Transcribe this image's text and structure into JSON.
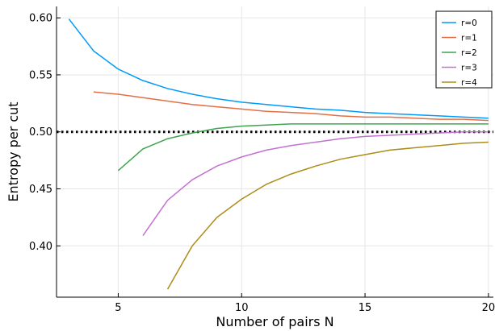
{
  "chart_data": {
    "type": "line",
    "xlabel": "Number of pairs N",
    "ylabel": "Entropy per cut",
    "xlim": [
      2.5,
      20.2
    ],
    "ylim": [
      0.355,
      0.61
    ],
    "x_ticks": [
      5,
      10,
      15,
      20
    ],
    "x_tick_labels": [
      "5",
      "10",
      "15",
      "20"
    ],
    "y_ticks": [
      0.4,
      0.45,
      0.5,
      0.55,
      0.6
    ],
    "y_tick_labels": [
      "0.40",
      "0.45",
      "0.50",
      "0.55",
      "0.60"
    ],
    "grid": true,
    "legend_position": "top-right",
    "reference_line": {
      "y": 0.5,
      "style": "dotted",
      "color": "#000000"
    },
    "series": [
      {
        "name": "r=0",
        "color": "#009AFA",
        "x": [
          3,
          4,
          5,
          6,
          7,
          8,
          9,
          10,
          11,
          12,
          13,
          14,
          15,
          16,
          17,
          18,
          19,
          20
        ],
        "y": [
          0.599,
          0.571,
          0.555,
          0.545,
          0.538,
          0.533,
          0.529,
          0.526,
          0.524,
          0.522,
          0.52,
          0.519,
          0.517,
          0.516,
          0.515,
          0.514,
          0.513,
          0.512
        ]
      },
      {
        "name": "r=1",
        "color": "#E36F47",
        "x": [
          4,
          5,
          6,
          7,
          8,
          9,
          10,
          11,
          12,
          13,
          14,
          15,
          16,
          17,
          18,
          19,
          20
        ],
        "y": [
          0.535,
          0.533,
          0.53,
          0.527,
          0.524,
          0.522,
          0.52,
          0.518,
          0.517,
          0.516,
          0.514,
          0.513,
          0.513,
          0.512,
          0.511,
          0.511,
          0.51
        ]
      },
      {
        "name": "r=2",
        "color": "#3EA44E",
        "x": [
          5,
          6,
          7,
          8,
          9,
          10,
          11,
          12,
          13,
          14,
          15,
          16,
          17,
          18,
          19,
          20
        ],
        "y": [
          0.466,
          0.485,
          0.494,
          0.499,
          0.503,
          0.505,
          0.506,
          0.507,
          0.507,
          0.507,
          0.507,
          0.507,
          0.507,
          0.507,
          0.507,
          0.507
        ]
      },
      {
        "name": "r=3",
        "color": "#C371D2",
        "x": [
          6,
          7,
          8,
          9,
          10,
          11,
          12,
          13,
          14,
          15,
          16,
          17,
          18,
          19,
          20
        ],
        "y": [
          0.409,
          0.44,
          0.458,
          0.47,
          0.478,
          0.484,
          0.488,
          0.491,
          0.494,
          0.496,
          0.497,
          0.498,
          0.499,
          0.5,
          0.5
        ]
      },
      {
        "name": "r=4",
        "color": "#AC8D18",
        "x": [
          7,
          8,
          9,
          10,
          11,
          12,
          13,
          14,
          15,
          16,
          17,
          18,
          19,
          20
        ],
        "y": [
          0.362,
          0.4,
          0.425,
          0.441,
          0.454,
          0.463,
          0.47,
          0.476,
          0.48,
          0.484,
          0.486,
          0.488,
          0.49,
          0.491
        ]
      }
    ]
  }
}
